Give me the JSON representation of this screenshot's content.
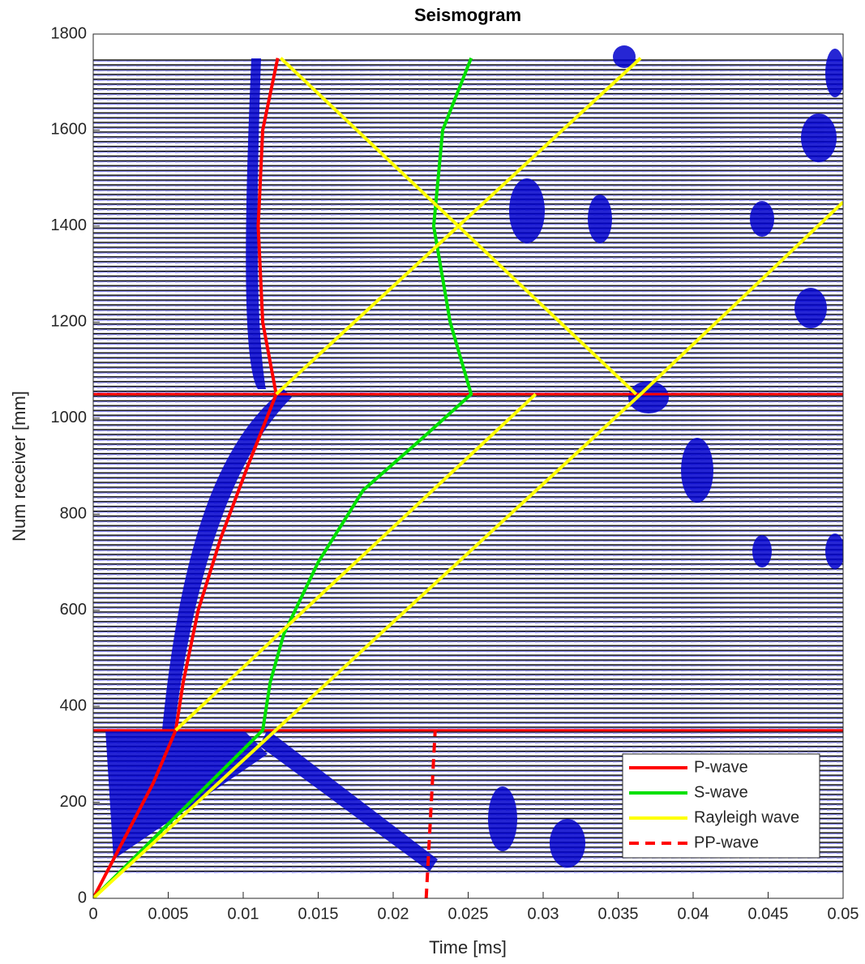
{
  "chart_data": {
    "type": "line",
    "title": "Seismogram",
    "xlabel": "Time [ms]",
    "ylabel": "Num receiver [mm]",
    "xlim": [
      0,
      0.05
    ],
    "ylim": [
      0,
      1800
    ],
    "xticks": [
      0,
      0.005,
      0.01,
      0.015,
      0.02,
      0.025,
      0.03,
      0.035,
      0.04,
      0.045,
      0.05
    ],
    "yticks": [
      0,
      200,
      400,
      600,
      800,
      1000,
      1200,
      1400,
      1600,
      1800
    ],
    "legend": "lower right",
    "reference_lines": {
      "values": [
        350,
        1050
      ],
      "color": "#ff0000"
    },
    "series": [
      {
        "name": "P-wave",
        "color": "#ff0000",
        "line_style": "solid",
        "x": [
          0,
          0.002,
          0.004,
          0.0055,
          0.006,
          0.007,
          0.0085,
          0.0103,
          0.0122,
          0.0113,
          0.011,
          0.0113,
          0.0123
        ],
        "values": [
          0,
          120,
          240,
          350,
          450,
          600,
          750,
          900,
          1050,
          1200,
          1400,
          1600,
          1750
        ]
      },
      {
        "name": "S-wave",
        "color": "#00e000",
        "line_style": "solid",
        "x": [
          0,
          0.0113,
          0.0118,
          0.0127,
          0.015,
          0.018,
          0.022,
          0.0252,
          0.0238,
          0.0227,
          0.0233,
          0.0252
        ],
        "values": [
          0,
          350,
          450,
          550,
          700,
          850,
          960,
          1050,
          1200,
          1400,
          1600,
          1750
        ]
      },
      {
        "name": "Rayleigh wave",
        "color": "#ffff00",
        "line_style": "solid",
        "x": [
          0,
          0.0365,
          0.05,
          null,
          0.0055,
          0.0295,
          null,
          0.0122,
          0.0365,
          null,
          0.0125,
          0.0362
        ],
        "values": [
          0,
          1050,
          1450,
          null,
          350,
          1050,
          null,
          1050,
          1750,
          null,
          1750,
          1050
        ]
      },
      {
        "name": "PP-wave",
        "color": "#ff0000",
        "line_style": "dashed",
        "x": [
          0.0222,
          0.0228
        ],
        "values": [
          0,
          350
        ]
      }
    ]
  }
}
